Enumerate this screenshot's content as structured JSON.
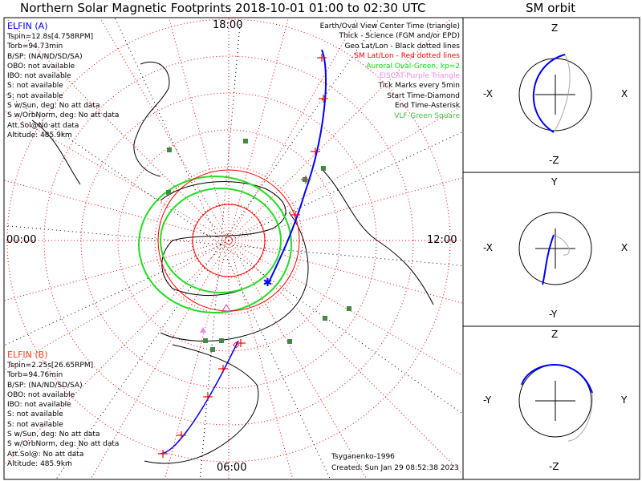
{
  "title": "Northern Solar Magnetic Footprints 2018-10-01 01:00 to 02:30 UTC",
  "orbit_title": "SM orbit",
  "elfin_a": {
    "name": "ELFIN (A)",
    "lines": [
      "Tspin=12.8s[4.758RPM]",
      "Torb=94.73min",
      "B/SP: (NA/ND/SD/SA)",
      "OBO: not available",
      "IBO: not available",
      "S: not available",
      "S: not available",
      "S w/Sun, deg: No att data",
      "S w/OrbNorm, deg: No att data",
      "Att.Sol@No att data",
      "Altitude: 485.9km"
    ],
    "color": "#0000ff"
  },
  "elfin_b": {
    "name": "ELFIN (B)",
    "lines": [
      "Tspin=2.25s[26.65RPM]",
      "Torb=94.76min",
      "B/SP: (NA/ND/SD/SA)",
      "OBO: not available",
      "IBO: not available",
      "S: not available",
      "S: not available",
      "S w/Sun, deg: No att data",
      "S w/OrbNorm, deg: No att data",
      "Att.Sol@: No att data",
      "Altitude: 485.9km"
    ],
    "color": "#ff3300"
  },
  "legend": [
    {
      "text": "Earth/Oval View Center Time (triangle)",
      "color": "#000000"
    },
    {
      "text": "Thick - Science (FGM and/or EPD)",
      "color": "#000000"
    },
    {
      "text": "Geo Lat/Lon - Black dotted lines",
      "color": "#000000"
    },
    {
      "text": "SM Lat/Lon - Red dotted lines",
      "color": "#ff0000"
    },
    {
      "text": "Auroral Oval-Green, kp=2",
      "color": "#00dd00"
    },
    {
      "text": "EISCAT-Purple Triangle",
      "color": "#ee88ee"
    },
    {
      "text": "Tick Marks every 5min",
      "color": "#000000"
    },
    {
      "text": "Start Time-Diamond",
      "color": "#000000"
    },
    {
      "text": "End Time-Asterisk",
      "color": "#000000"
    },
    {
      "text": "VLF-Green Square",
      "color": "#44bb44"
    }
  ],
  "mlt_labels": {
    "top": "18:00",
    "left": "00:00",
    "right": "12:00",
    "bottom": "06:00"
  },
  "credit": "Tsyganenko-1996",
  "created": "Created: Sun Jan 29 08:52:38 2023",
  "orbit_panels": [
    {
      "top": "Z",
      "bottom": "-Z",
      "left": "-X",
      "right": "X"
    },
    {
      "top": "Y",
      "bottom": "-Y",
      "left": "-X",
      "right": "X"
    },
    {
      "top": "Z",
      "bottom": "-Z",
      "left": "-Y",
      "right": "Y"
    }
  ],
  "chart_data": {
    "type": "polar-map",
    "rings_deg_sm": [
      10,
      20,
      30,
      40,
      50,
      60
    ],
    "kp": 2
  }
}
